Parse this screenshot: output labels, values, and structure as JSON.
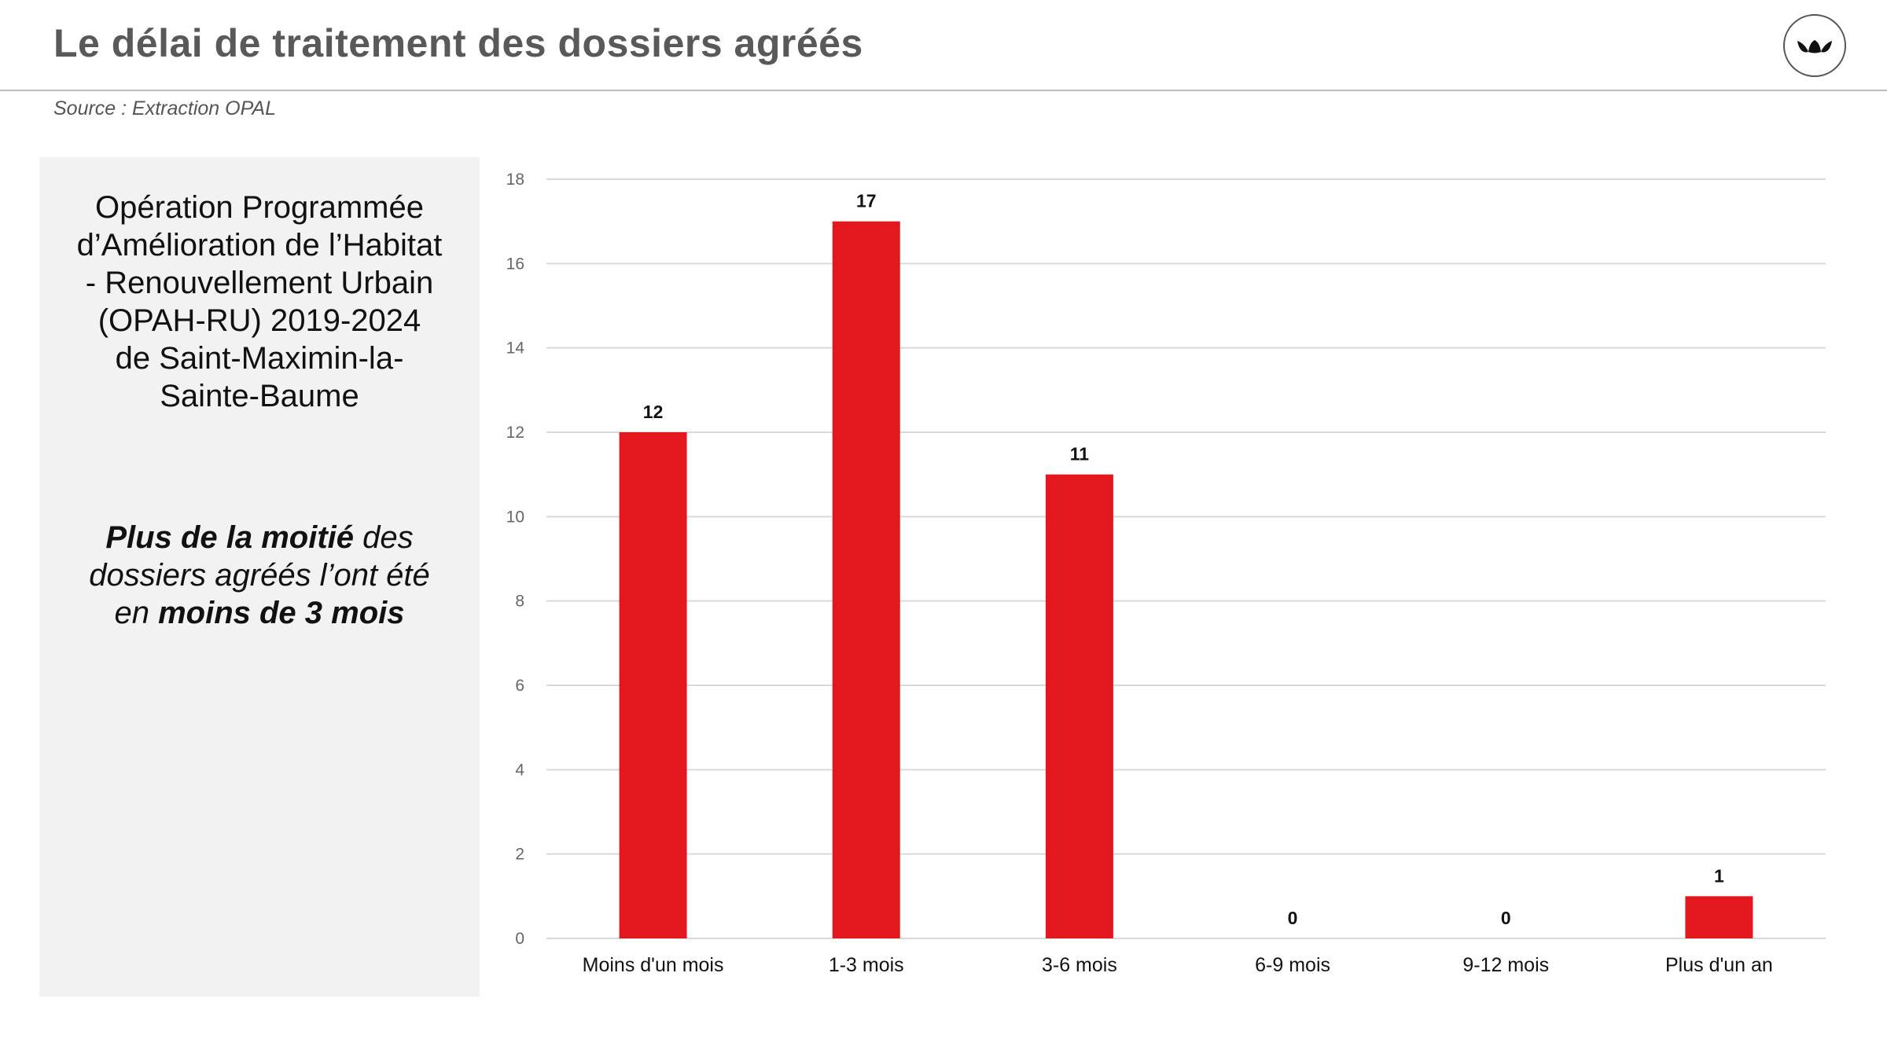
{
  "header": {
    "title": "Le délai de traitement des dossiers agréés",
    "source": "Source : Extraction OPAL",
    "logo_icon": "brand-logo-icon"
  },
  "panel": {
    "title_lines": [
      "Opération Programmée",
      "d’Amélioration de l’Habitat",
      "- Renouvellement Urbain",
      "(OPAH-RU) 2019-2024",
      "de Saint-Maximin-la-",
      "Sainte-Baume"
    ],
    "note": {
      "l1_bold": "Plus de la moitié",
      "l1_rest": " des",
      "l2": "dossiers agréés l’ont été",
      "l3_pre": "en ",
      "l3_bold": "moins de 3 mois"
    }
  },
  "colors": {
    "bar": "#e3181e",
    "grid": "#d9d9d9",
    "panel": "#f2f2f2"
  },
  "chart_data": {
    "type": "bar",
    "title": "",
    "xlabel": "",
    "ylabel": "",
    "categories": [
      "Moins d'un mois",
      "1-3 mois",
      "3-6 mois",
      "6-9 mois",
      "9-12 mois",
      "Plus d'un an"
    ],
    "values": [
      12,
      17,
      11,
      0,
      0,
      1
    ],
    "ylim": [
      0,
      18
    ],
    "yticks": [
      0,
      2,
      4,
      6,
      8,
      10,
      12,
      14,
      16,
      18
    ],
    "grid": true,
    "data_labels": true,
    "legend": "none"
  }
}
